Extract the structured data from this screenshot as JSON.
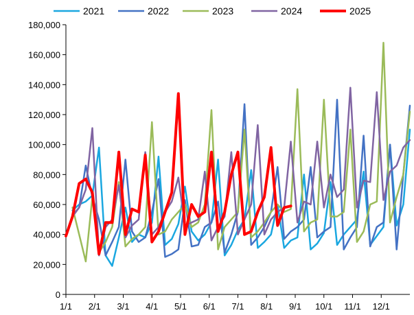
{
  "chart_data": {
    "type": "line",
    "title": "",
    "xlabel": "",
    "ylabel": "",
    "x_tick_labels": [
      "1/1",
      "2/1",
      "3/1",
      "4/1",
      "5/1",
      "6/1",
      "7/1",
      "8/1",
      "9/1",
      "10/1",
      "11/1",
      "12/1"
    ],
    "y_tick_labels": [
      "0",
      "20,000",
      "40,000",
      "60,000",
      "80,000",
      "100,000",
      "120,000",
      "140,000",
      "160,000",
      "180,000"
    ],
    "ylim": [
      0,
      180000
    ],
    "xlim_weeks": [
      0,
      52
    ],
    "legend_position": "top",
    "grid": false,
    "series": [
      {
        "name": "2021",
        "color": "#1aa7e0",
        "width": 2.5,
        "points": [
          [
            1.0,
            56000
          ],
          [
            2.0,
            60000
          ],
          [
            3.0,
            62000
          ],
          [
            4.0,
            66000
          ],
          [
            5.0,
            98000
          ],
          [
            6.0,
            26000
          ],
          [
            7.0,
            19000
          ],
          [
            8.0,
            38000
          ],
          [
            9.0,
            58000
          ],
          [
            10.0,
            35000
          ],
          [
            11.0,
            40000
          ],
          [
            12.0,
            38000
          ],
          [
            13.0,
            48000
          ],
          [
            14.0,
            92000
          ],
          [
            15.0,
            33000
          ],
          [
            16.0,
            37000
          ],
          [
            17.0,
            47000
          ],
          [
            18.0,
            72000
          ],
          [
            19.0,
            42000
          ],
          [
            20.0,
            36000
          ],
          [
            21.0,
            40000
          ],
          [
            22.0,
            48000
          ],
          [
            23.0,
            90000
          ],
          [
            24.0,
            26000
          ],
          [
            25.0,
            33000
          ],
          [
            26.0,
            43000
          ],
          [
            27.0,
            50000
          ],
          [
            28.0,
            83000
          ],
          [
            29.0,
            31000
          ],
          [
            30.0,
            35000
          ],
          [
            31.0,
            40000
          ],
          [
            32.0,
            60000
          ],
          [
            33.0,
            31000
          ],
          [
            34.0,
            36000
          ],
          [
            35.0,
            38000
          ],
          [
            36.0,
            80000
          ],
          [
            37.0,
            30000
          ],
          [
            38.0,
            34000
          ],
          [
            39.0,
            41000
          ],
          [
            40.0,
            75000
          ],
          [
            41.0,
            33000
          ],
          [
            42.0,
            40000
          ],
          [
            43.0,
            45000
          ],
          [
            44.0,
            50000
          ],
          [
            45.0,
            82000
          ],
          [
            46.0,
            33000
          ],
          [
            47.0,
            39000
          ],
          [
            48.0,
            45000
          ],
          [
            49.0,
            100000
          ],
          [
            50.0,
            46000
          ],
          [
            51.0,
            60000
          ],
          [
            52.0,
            110000
          ]
        ]
      },
      {
        "name": "2022",
        "color": "#4472c4",
        "width": 2.5,
        "points": [
          [
            1.0,
            53000
          ],
          [
            2.0,
            58000
          ],
          [
            3.0,
            86000
          ],
          [
            4.0,
            65000
          ],
          [
            5.0,
            50000
          ],
          [
            6.0,
            26000
          ],
          [
            7.0,
            35000
          ],
          [
            8.0,
            45000
          ],
          [
            9.0,
            90000
          ],
          [
            10.0,
            42000
          ],
          [
            11.0,
            35000
          ],
          [
            12.0,
            38000
          ],
          [
            13.0,
            55000
          ],
          [
            14.0,
            77000
          ],
          [
            15.0,
            25000
          ],
          [
            16.0,
            27000
          ],
          [
            17.0,
            30000
          ],
          [
            18.0,
            63000
          ],
          [
            19.0,
            32000
          ],
          [
            20.0,
            33000
          ],
          [
            21.0,
            45000
          ],
          [
            22.0,
            48000
          ],
          [
            23.0,
            62000
          ],
          [
            24.0,
            28000
          ],
          [
            25.0,
            40000
          ],
          [
            26.0,
            55000
          ],
          [
            27.0,
            127000
          ],
          [
            28.0,
            33000
          ],
          [
            29.0,
            38000
          ],
          [
            30.0,
            45000
          ],
          [
            31.0,
            55000
          ],
          [
            32.0,
            85000
          ],
          [
            33.0,
            37000
          ],
          [
            34.0,
            42000
          ],
          [
            35.0,
            45000
          ],
          [
            36.0,
            50000
          ],
          [
            37.0,
            85000
          ],
          [
            38.0,
            38000
          ],
          [
            39.0,
            42000
          ],
          [
            40.0,
            45000
          ],
          [
            41.0,
            130000
          ],
          [
            42.0,
            30000
          ],
          [
            43.0,
            38000
          ],
          [
            44.0,
            45000
          ],
          [
            45.0,
            106000
          ],
          [
            46.0,
            32000
          ],
          [
            47.0,
            45000
          ],
          [
            48.0,
            48000
          ],
          [
            49.0,
            100000
          ],
          [
            50.0,
            30000
          ],
          [
            51.0,
            80000
          ],
          [
            52.0,
            126000
          ]
        ]
      },
      {
        "name": "2023",
        "color": "#9bbb59",
        "width": 2.5,
        "points": [
          [
            1.0,
            58000
          ],
          [
            2.0,
            40000
          ],
          [
            3.0,
            22000
          ],
          [
            4.0,
            65000
          ],
          [
            5.0,
            28000
          ],
          [
            6.0,
            35000
          ],
          [
            7.0,
            45000
          ],
          [
            8.0,
            75000
          ],
          [
            9.0,
            32000
          ],
          [
            10.0,
            37000
          ],
          [
            11.0,
            40000
          ],
          [
            12.0,
            45000
          ],
          [
            13.0,
            115000
          ],
          [
            14.0,
            40000
          ],
          [
            15.0,
            42000
          ],
          [
            16.0,
            50000
          ],
          [
            17.0,
            55000
          ],
          [
            18.0,
            60000
          ],
          [
            19.0,
            45000
          ],
          [
            20.0,
            48000
          ],
          [
            21.0,
            60000
          ],
          [
            22.0,
            123000
          ],
          [
            23.0,
            30000
          ],
          [
            24.0,
            45000
          ],
          [
            25.0,
            50000
          ],
          [
            26.0,
            55000
          ],
          [
            27.0,
            110000
          ],
          [
            28.0,
            38000
          ],
          [
            29.0,
            42000
          ],
          [
            30.0,
            48000
          ],
          [
            31.0,
            55000
          ],
          [
            32.0,
            60000
          ],
          [
            33.0,
            55000
          ],
          [
            34.0,
            57000
          ],
          [
            35.0,
            137000
          ],
          [
            36.0,
            42000
          ],
          [
            37.0,
            48000
          ],
          [
            38.0,
            50000
          ],
          [
            39.0,
            130000
          ],
          [
            40.0,
            52000
          ],
          [
            41.0,
            52000
          ],
          [
            42.0,
            55000
          ],
          [
            43.0,
            110000
          ],
          [
            44.0,
            35000
          ],
          [
            45.0,
            42000
          ],
          [
            46.0,
            60000
          ],
          [
            47.0,
            62000
          ],
          [
            48.0,
            168000
          ],
          [
            49.0,
            48000
          ],
          [
            50.0,
            65000
          ],
          [
            51.0,
            80000
          ],
          [
            52.0,
            122000
          ]
        ]
      },
      {
        "name": "2024",
        "color": "#8064a2",
        "width": 2.5,
        "points": [
          [
            1.0,
            52000
          ],
          [
            2.0,
            58000
          ],
          [
            3.0,
            70000
          ],
          [
            4.0,
            111000
          ],
          [
            5.0,
            26000
          ],
          [
            6.0,
            45000
          ],
          [
            7.0,
            50000
          ],
          [
            8.0,
            73000
          ],
          [
            9.0,
            38000
          ],
          [
            10.0,
            46000
          ],
          [
            11.0,
            50000
          ],
          [
            12.0,
            95000
          ],
          [
            13.0,
            40000
          ],
          [
            14.0,
            45000
          ],
          [
            15.0,
            55000
          ],
          [
            16.0,
            62000
          ],
          [
            17.0,
            78000
          ],
          [
            18.0,
            46000
          ],
          [
            19.0,
            48000
          ],
          [
            20.0,
            50000
          ],
          [
            21.0,
            82000
          ],
          [
            22.0,
            36000
          ],
          [
            23.0,
            45000
          ],
          [
            24.0,
            52000
          ],
          [
            25.0,
            95000
          ],
          [
            26.0,
            40000
          ],
          [
            27.0,
            50000
          ],
          [
            28.0,
            60000
          ],
          [
            29.0,
            113000
          ],
          [
            30.0,
            40000
          ],
          [
            31.0,
            50000
          ],
          [
            32.0,
            55000
          ],
          [
            33.0,
            58000
          ],
          [
            34.0,
            102000
          ],
          [
            35.0,
            48000
          ],
          [
            36.0,
            62000
          ],
          [
            37.0,
            60000
          ],
          [
            38.0,
            102000
          ],
          [
            39.0,
            58000
          ],
          [
            40.0,
            80000
          ],
          [
            41.0,
            65000
          ],
          [
            42.0,
            70000
          ],
          [
            43.0,
            138000
          ],
          [
            44.0,
            58000
          ],
          [
            45.0,
            76000
          ],
          [
            46.0,
            75000
          ],
          [
            47.0,
            135000
          ],
          [
            48.0,
            63000
          ],
          [
            49.0,
            82000
          ],
          [
            50.0,
            86000
          ],
          [
            51.0,
            98000
          ],
          [
            52.0,
            103000
          ]
        ]
      },
      {
        "name": "2025",
        "color": "#ff0000",
        "width": 4,
        "points": [
          [
            0.0,
            39000
          ],
          [
            1.0,
            52000
          ],
          [
            2.0,
            74000
          ],
          [
            3.0,
            77000
          ],
          [
            4.0,
            68000
          ],
          [
            5.0,
            27000
          ],
          [
            6.0,
            48000
          ],
          [
            7.0,
            48000
          ],
          [
            8.0,
            95000
          ],
          [
            9.0,
            40000
          ],
          [
            10.0,
            57000
          ],
          [
            11.0,
            55000
          ],
          [
            12.0,
            93000
          ],
          [
            13.0,
            35000
          ],
          [
            14.0,
            42000
          ],
          [
            15.0,
            55000
          ],
          [
            16.0,
            68000
          ],
          [
            17.0,
            134000
          ],
          [
            18.0,
            40000
          ],
          [
            19.0,
            60000
          ],
          [
            20.0,
            52000
          ],
          [
            21.0,
            55000
          ],
          [
            22.0,
            95000
          ],
          [
            23.0,
            42000
          ],
          [
            24.0,
            55000
          ],
          [
            25.0,
            80000
          ],
          [
            26.0,
            95000
          ],
          [
            27.0,
            40000
          ],
          [
            28.0,
            42000
          ],
          [
            29.0,
            55000
          ],
          [
            30.0,
            65000
          ],
          [
            31.0,
            98000
          ],
          [
            32.0,
            46000
          ],
          [
            33.0,
            58000
          ],
          [
            34.0,
            59000
          ]
        ]
      }
    ]
  }
}
